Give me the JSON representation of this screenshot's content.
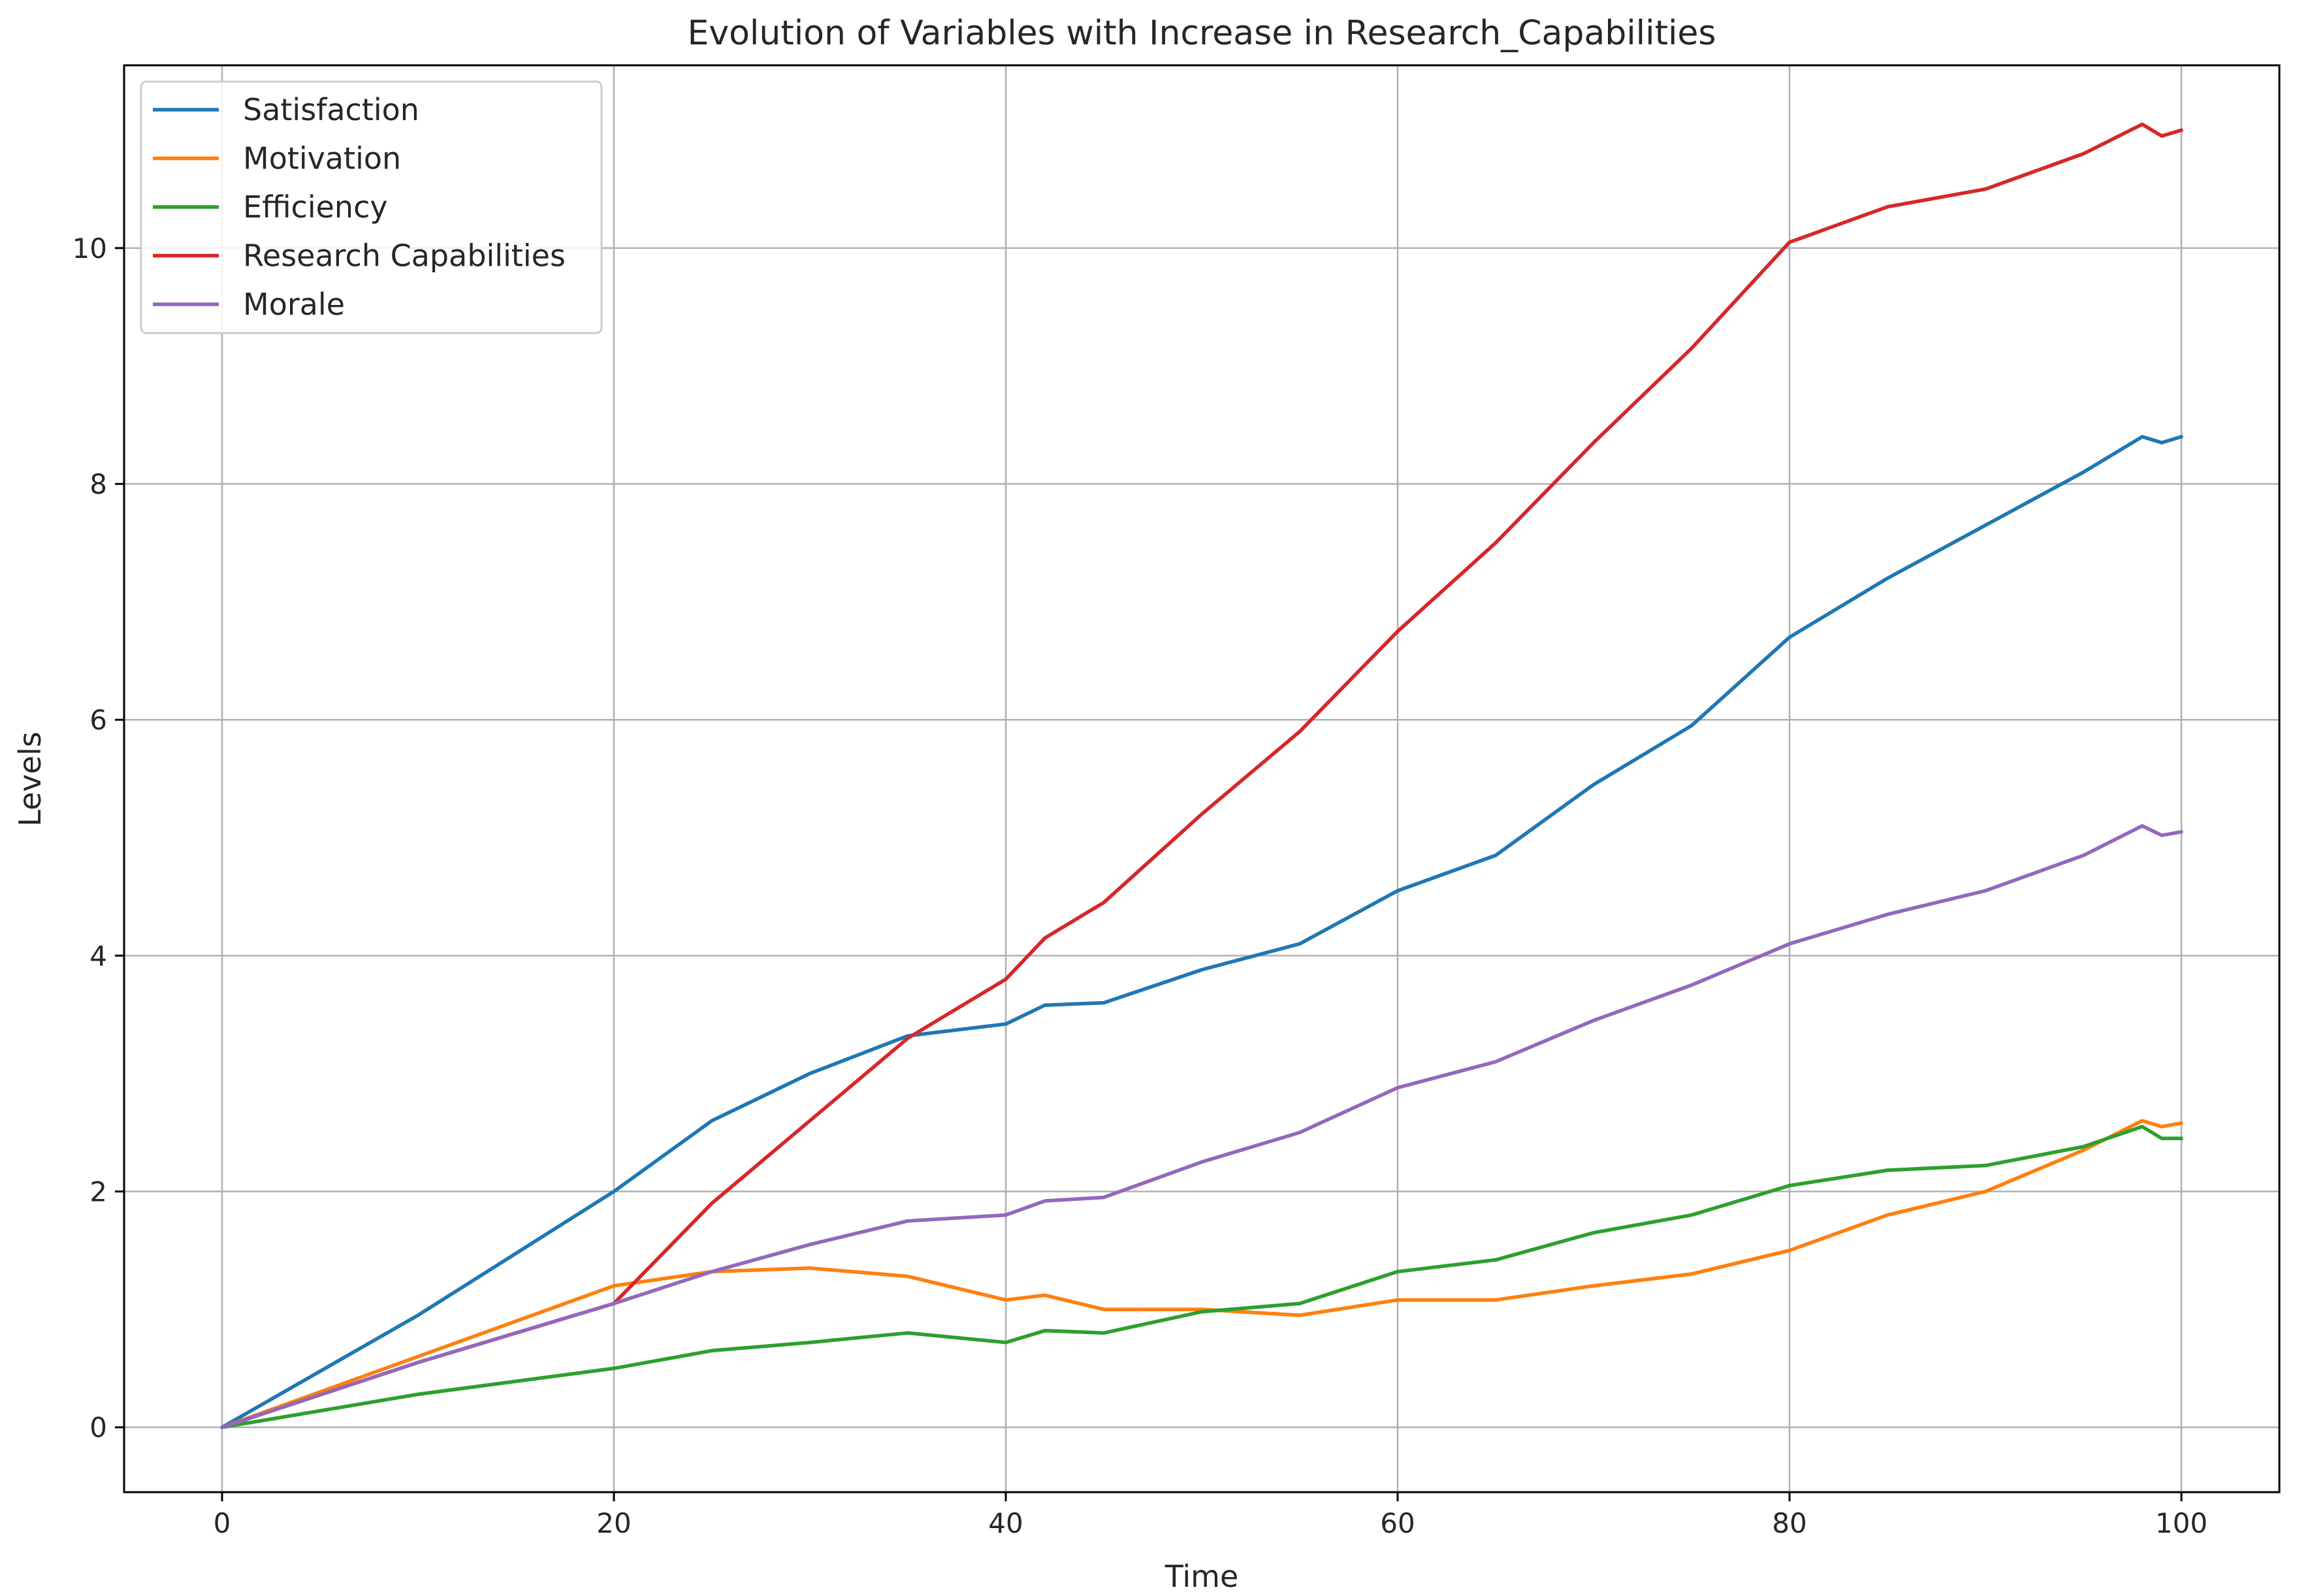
{
  "chart_data": {
    "type": "line",
    "title": "Evolution of Variables with Increase in Research_Capabilities",
    "xlabel": "Time",
    "ylabel": "Levels",
    "xlim": [
      -5,
      105
    ],
    "ylim": [
      -0.55,
      11.55
    ],
    "xticks": [
      0,
      20,
      40,
      60,
      80,
      100
    ],
    "yticks": [
      0,
      2,
      4,
      6,
      8,
      10
    ],
    "grid": true,
    "legend_position": "top-left",
    "x": [
      0,
      10,
      20,
      25,
      30,
      35,
      40,
      42,
      45,
      50,
      55,
      60,
      65,
      70,
      75,
      80,
      85,
      90,
      95,
      98,
      99,
      100
    ],
    "series": [
      {
        "name": "Satisfaction",
        "color": "#1f77b4",
        "values": [
          0,
          0.95,
          2.0,
          2.6,
          3.0,
          3.32,
          3.42,
          3.58,
          3.6,
          3.88,
          4.1,
          4.55,
          4.85,
          5.45,
          5.95,
          6.7,
          7.2,
          7.65,
          8.1,
          8.4,
          8.35,
          8.4
        ]
      },
      {
        "name": "Motivation",
        "color": "#ff7f0e",
        "values": [
          0,
          0.6,
          1.2,
          1.32,
          1.35,
          1.28,
          1.08,
          1.12,
          1.0,
          1.0,
          0.95,
          1.08,
          1.08,
          1.2,
          1.3,
          1.5,
          1.8,
          2.0,
          2.35,
          2.6,
          2.55,
          2.58
        ]
      },
      {
        "name": "Efficiency",
        "color": "#2ca02c",
        "values": [
          0,
          0.28,
          0.5,
          0.65,
          0.72,
          0.8,
          0.72,
          0.82,
          0.8,
          0.98,
          1.05,
          1.32,
          1.42,
          1.65,
          1.8,
          2.05,
          2.18,
          2.22,
          2.38,
          2.55,
          2.45,
          2.45
        ]
      },
      {
        "name": "Research Capabilities",
        "color": "#d62728",
        "values": [
          0,
          0.55,
          1.05,
          1.9,
          2.6,
          3.3,
          3.8,
          4.15,
          4.45,
          5.2,
          5.9,
          6.75,
          7.5,
          8.35,
          9.15,
          10.05,
          10.35,
          10.5,
          10.8,
          11.05,
          10.95,
          11.0
        ]
      },
      {
        "name": "Morale",
        "color": "#9467bd",
        "values": [
          0,
          0.55,
          1.05,
          1.32,
          1.55,
          1.75,
          1.8,
          1.92,
          1.95,
          2.25,
          2.5,
          2.88,
          3.1,
          3.45,
          3.75,
          4.1,
          4.35,
          4.55,
          4.85,
          5.1,
          5.02,
          5.05
        ]
      }
    ]
  }
}
